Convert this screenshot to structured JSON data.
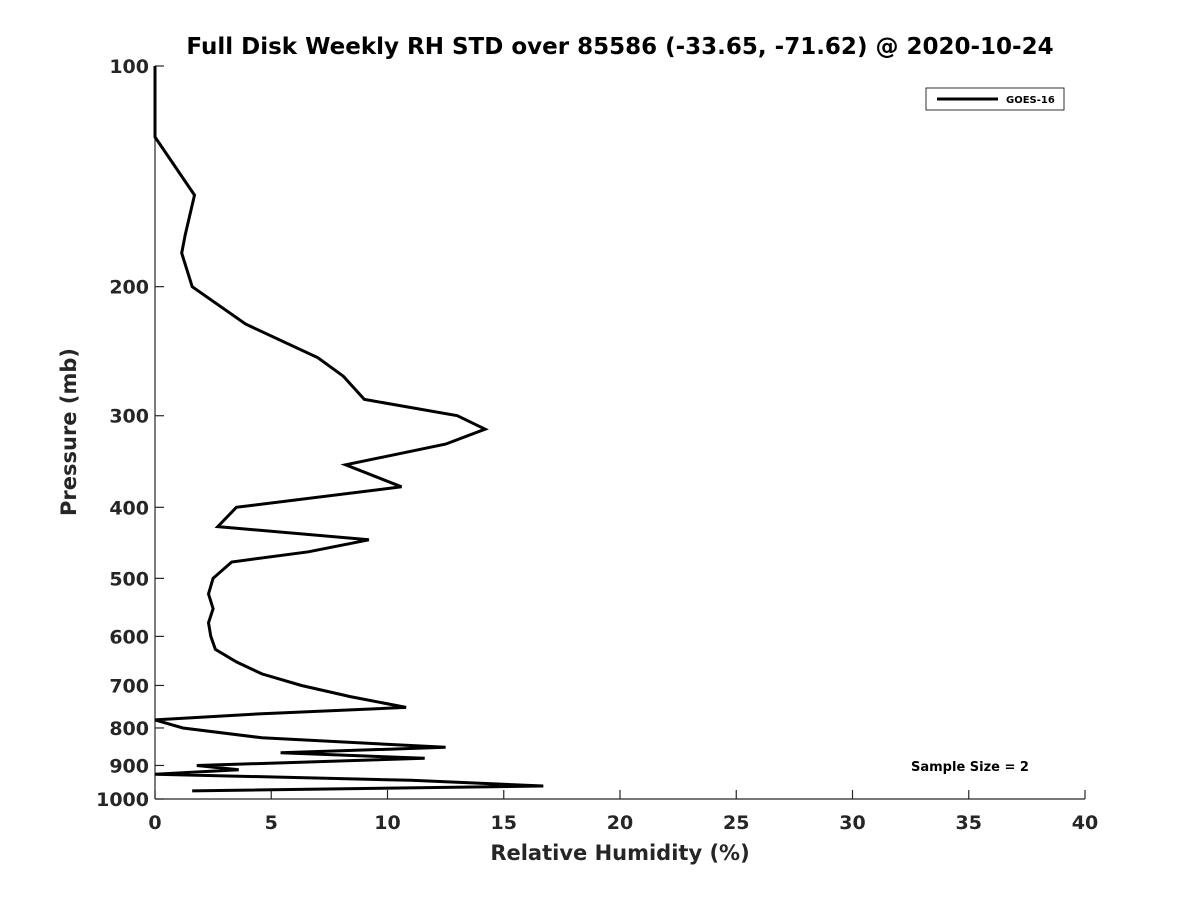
{
  "chart_data": {
    "type": "line",
    "title": "Full Disk Weekly RH STD over 85586 (-33.65, -71.62) @ 2020-10-24",
    "xlabel": "Relative Humidity (%)",
    "ylabel": "Pressure (mb)",
    "xlim": [
      0,
      40
    ],
    "ylim": [
      100,
      1000
    ],
    "y_scale": "log",
    "y_reversed": true,
    "grid": false,
    "x_ticks": [
      "0",
      "5",
      "10",
      "15",
      "20",
      "25",
      "30",
      "35",
      "40"
    ],
    "y_ticks": [
      "100",
      "200",
      "300",
      "400",
      "500",
      "600",
      "700",
      "800",
      "900",
      "1000"
    ],
    "legend": {
      "position": "top-right",
      "entries": [
        "GOES-16"
      ]
    },
    "annotation": "Sample Size = 2",
    "series": [
      {
        "name": "GOES-16",
        "color": "#000000",
        "points": [
          [
            0.0,
            100
          ],
          [
            0.0,
            125
          ],
          [
            1.7,
            150
          ],
          [
            1.3,
            170
          ],
          [
            1.15,
            180
          ],
          [
            1.6,
            200
          ],
          [
            3.9,
            225
          ],
          [
            7.0,
            250
          ],
          [
            8.1,
            265
          ],
          [
            9.0,
            285
          ],
          [
            13.0,
            300
          ],
          [
            14.2,
            313
          ],
          [
            12.5,
            328
          ],
          [
            8.2,
            350
          ],
          [
            10.6,
            375
          ],
          [
            3.5,
            400
          ],
          [
            2.7,
            425
          ],
          [
            9.2,
            443
          ],
          [
            6.6,
            460
          ],
          [
            3.3,
            475
          ],
          [
            2.5,
            500
          ],
          [
            2.3,
            525
          ],
          [
            2.5,
            550
          ],
          [
            2.3,
            575
          ],
          [
            2.4,
            600
          ],
          [
            2.6,
            625
          ],
          [
            3.5,
            650
          ],
          [
            4.6,
            675
          ],
          [
            6.3,
            700
          ],
          [
            8.4,
            725
          ],
          [
            10.8,
            750
          ],
          [
            4.6,
            765
          ],
          [
            0.0,
            780
          ],
          [
            1.2,
            800
          ],
          [
            4.6,
            825
          ],
          [
            12.5,
            850
          ],
          [
            5.4,
            865
          ],
          [
            11.6,
            880
          ],
          [
            1.8,
            900
          ],
          [
            3.6,
            912
          ],
          [
            0.0,
            925
          ],
          [
            11.0,
            943
          ],
          [
            16.7,
            960
          ],
          [
            1.6,
            975
          ]
        ]
      }
    ]
  }
}
